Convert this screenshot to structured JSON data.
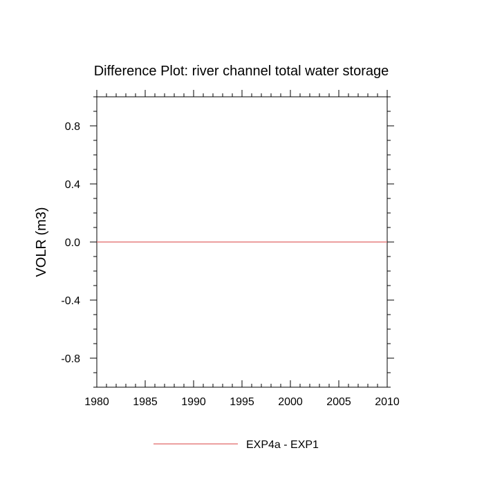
{
  "chart_data": {
    "type": "line",
    "title": "Difference Plot: river channel total water storage",
    "xlabel": "",
    "ylabel": "VOLR  (m3)",
    "xlim": [
      1980,
      2010
    ],
    "ylim": [
      -1.0,
      1.0
    ],
    "x_ticks": [
      1980,
      1985,
      1990,
      1995,
      2000,
      2005,
      2010
    ],
    "x_tick_labels": [
      "1980",
      "1985",
      "1990",
      "1995",
      "2000",
      "2005",
      "2010"
    ],
    "x_minor_step": 1,
    "y_ticks": [
      0.8,
      0.4,
      0.0,
      -0.4,
      -0.8
    ],
    "y_tick_labels": [
      "0.8",
      "0.4",
      "0.0",
      "-0.4",
      "-0.8"
    ],
    "y_minor_step": 0.1,
    "grid": false,
    "legend_position": "bottom-center",
    "series": [
      {
        "name": "EXP4a - EXP1",
        "color": "#e06666",
        "x": [
          1980,
          2010
        ],
        "y": [
          0.0,
          0.0
        ]
      }
    ]
  }
}
